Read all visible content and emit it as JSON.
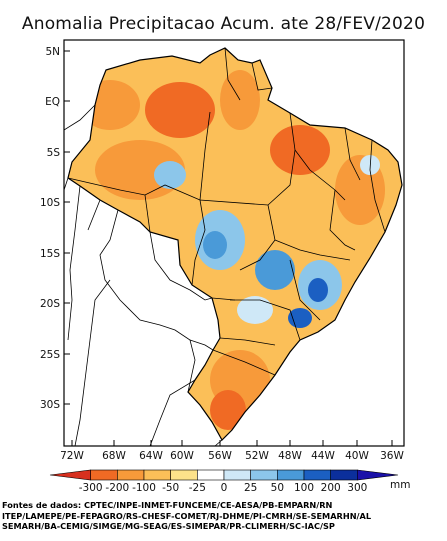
{
  "title": "Anomalia Precipitacao Acum. ate 28/FEV/2020",
  "lat_labels": [
    "5N",
    "EQ",
    "5S",
    "10S",
    "15S",
    "20S",
    "25S",
    "30S"
  ],
  "lon_labels": [
    "72W",
    "68W",
    "64W",
    "60W",
    "56W",
    "52W",
    "48W",
    "44W",
    "40W",
    "36W"
  ],
  "legend": {
    "ticks": [
      "-300",
      "-200",
      "-100",
      "-50",
      "-25",
      "0",
      "25",
      "50",
      "100",
      "200",
      "300"
    ],
    "unit": "mm",
    "colors": [
      "#d7301f",
      "#f06a24",
      "#f79a3a",
      "#fbbf58",
      "#fde28a",
      "#ffffff",
      "#cfe8f7",
      "#8cc6ea",
      "#4a9ad8",
      "#1b5fc2",
      "#0b2f9c",
      "#1a11a8"
    ]
  },
  "source_lines": [
    "Fontes de dados: CPTEC/INPE-INMET-FUNCEME/CE-AESA/PB-EMPARN/RN",
    "ITEP/LAMEPE/PE-FEPAGRO/RS-CHESF-COMET/RJ-DHME/PI-CMRH/SE-SEMARHN/AL",
    "SEMARH/BA-CEMIG/SIMGE/MG-SEAG/ES-SIMEPAR/PR-CLIMERH/SC-IAC/SP"
  ]
}
